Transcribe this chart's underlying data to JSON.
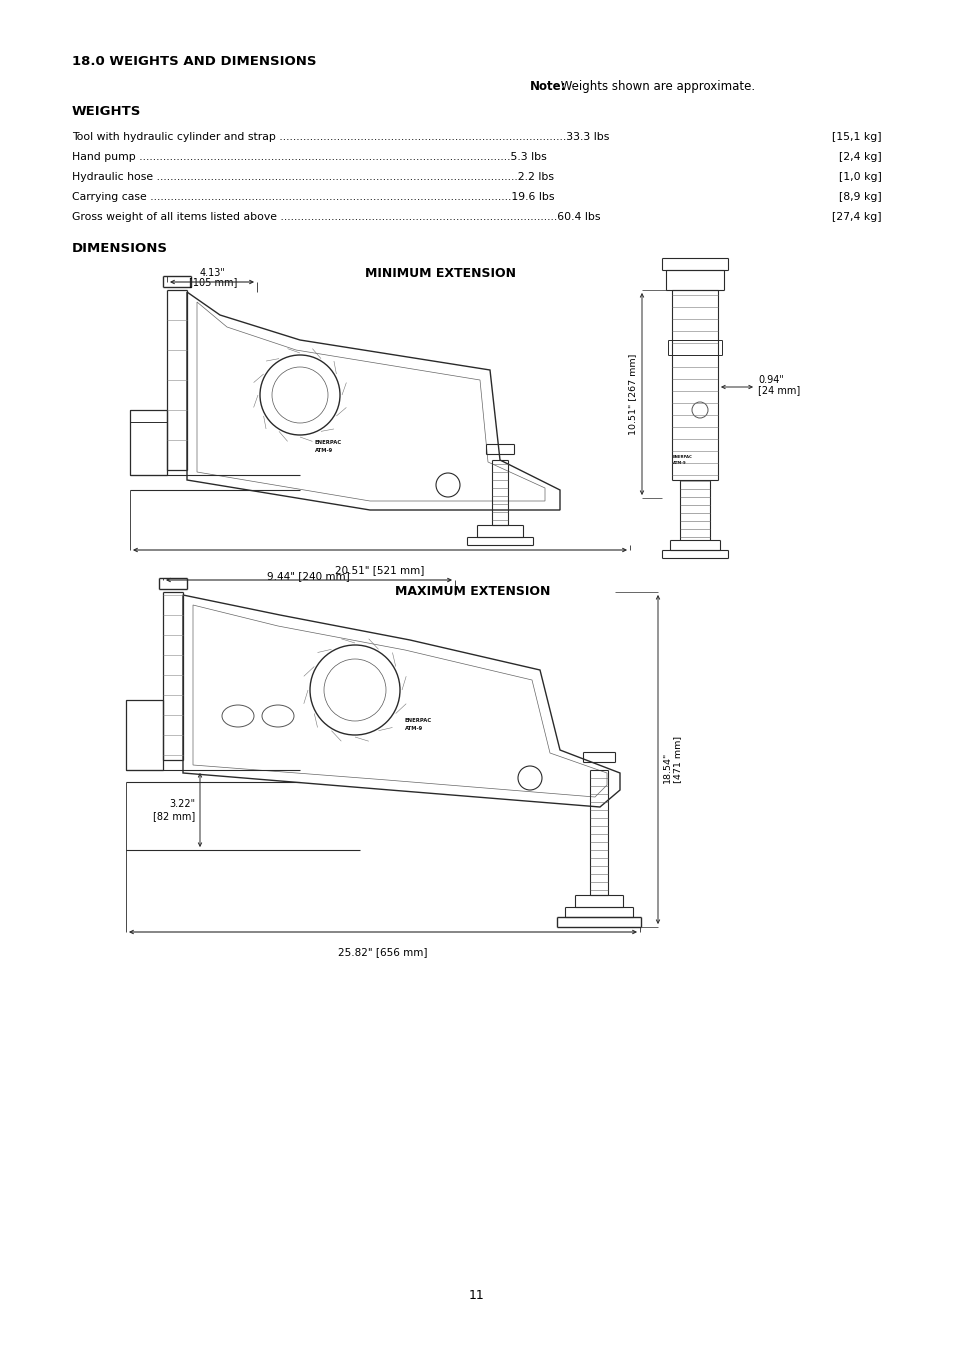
{
  "title": "18.0 WEIGHTS AND DIMENSIONS",
  "note_bold": "Note:",
  "note_rest": " Weights shown are approximate.",
  "weights_header": "WEIGHTS",
  "weights": [
    {
      "label": "Tool with hydraulic cylinder and strap",
      "dots": 85,
      "lbs": "33.3 lbs",
      "kg": "[15,1 kg]"
    },
    {
      "label": "Hand pump",
      "dots": 110,
      "lbs": "5.3 lbs",
      "kg": "[2,4 kg]"
    },
    {
      "label": "Hydraulic hose",
      "dots": 107,
      "lbs": "2.2 lbs",
      "kg": "[1,0 kg]"
    },
    {
      "label": "Carrying case",
      "dots": 107,
      "lbs": "19.6 lbs",
      "kg": "[8,9 kg]"
    },
    {
      "label": "Gross weight of all items listed above",
      "dots": 82,
      "lbs": "60.4 lbs",
      "kg": "[27,4 kg]"
    }
  ],
  "dimensions_header": "DIMENSIONS",
  "min_ext_label": "MINIMUM EXTENSION",
  "max_ext_label": "MAXIMUM EXTENSION",
  "min_dims": {
    "top_width_l1": "4.13\"",
    "top_width_l2": "[105 mm]",
    "bottom_width": "20.51\" [521 mm]",
    "right_height": "10.51\" [267 mm]",
    "right_width_l1": "0.94\"",
    "right_width_l2": "[24 mm]"
  },
  "max_dims": {
    "top_width": "9.44\" [240 mm]",
    "bottom_width": "25.82\" [656 mm]",
    "right_height_l1": "18.54\"",
    "right_height_l2": "[471 mm]",
    "left_height_l1": "3.22\"",
    "left_height_l2": "[82 mm]"
  },
  "page_number": "11",
  "bg_color": "#ffffff",
  "text_color": "#000000",
  "draw_color": "#2a2a2a"
}
